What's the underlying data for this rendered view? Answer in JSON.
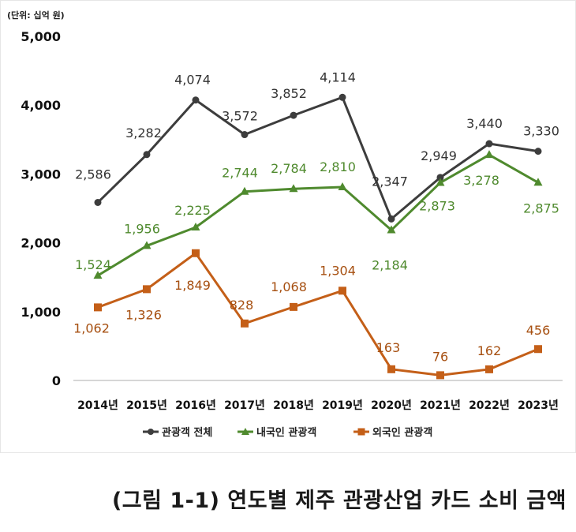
{
  "unit_label": "(단위: 십억 원)",
  "caption": "(그림 1-1) 연도별 제주 관광산업 카드 소비 금액",
  "chart_data": {
    "type": "line",
    "title": "",
    "xlabel": "",
    "ylabel": "",
    "ylim": [
      0,
      5000
    ],
    "yticks": [
      "0",
      "1,000",
      "2,000",
      "3,000",
      "4,000",
      "5,000"
    ],
    "yticks_values": [
      0,
      1000,
      2000,
      3000,
      4000,
      5000
    ],
    "grid": false,
    "legend_position": "bottom",
    "categories": [
      "2014년",
      "2015년",
      "2016년",
      "2017년",
      "2018년",
      "2019년",
      "2020년",
      "2021년",
      "2022년",
      "2023년"
    ],
    "series": [
      {
        "name": "관광객 전체",
        "color": "#3d3d3d",
        "marker": "circle",
        "values": [
          2586,
          3282,
          4074,
          3572,
          3852,
          4114,
          2347,
          2949,
          3440,
          3330
        ],
        "labels": [
          "2,586",
          "3,282",
          "4,074",
          "3,572",
          "3,852",
          "4,114",
          "2,347",
          "2,949",
          "3,440",
          "3,330"
        ]
      },
      {
        "name": "내국인 관광객",
        "color": "#4f8a2e",
        "marker": "triangle",
        "values": [
          1524,
          1956,
          2225,
          2744,
          2784,
          2810,
          2184,
          2873,
          3278,
          2875
        ],
        "labels": [
          "1,524",
          "1,956",
          "2,225",
          "2,744",
          "2,784",
          "2,810",
          "2,184",
          "2,873",
          "3,278",
          "2,875"
        ]
      },
      {
        "name": "외국인 관광객",
        "color": "#c45f18",
        "marker": "square",
        "values": [
          1062,
          1326,
          1849,
          828,
          1068,
          1304,
          163,
          76,
          162,
          456
        ],
        "labels": [
          "1,062",
          "1,326",
          "1,849",
          "828",
          "1,068",
          "1,304",
          "163",
          "76",
          "162",
          "456"
        ]
      }
    ]
  }
}
